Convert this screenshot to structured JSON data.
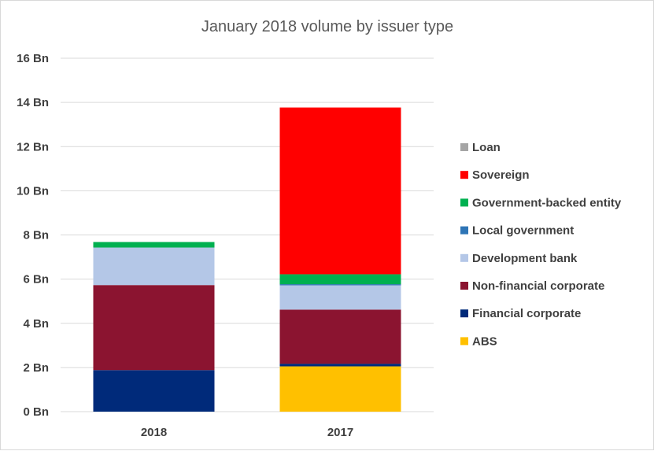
{
  "chart_data": {
    "type": "bar",
    "stacked": true,
    "title": "January 2018 volume by issuer type",
    "categories": [
      "2018",
      "2017"
    ],
    "ylim": [
      0,
      16
    ],
    "y_ticks": [
      "0 Bn",
      "2 Bn",
      "4 Bn",
      "6 Bn",
      "8 Bn",
      "10 Bn",
      "12 Bn",
      "14 Bn",
      "16 Bn"
    ],
    "y_tick_values": [
      0,
      2,
      4,
      6,
      8,
      10,
      12,
      14,
      16
    ],
    "grid": true,
    "legend_position": "right",
    "series": [
      {
        "name": "ABS",
        "color": "#ffc000",
        "values": [
          0,
          2.05
        ]
      },
      {
        "name": "Financial corporate",
        "color": "#002a7a",
        "values": [
          1.88,
          0.12
        ]
      },
      {
        "name": "Non-financial corporate",
        "color": "#8b1430",
        "values": [
          3.85,
          2.45
        ]
      },
      {
        "name": "Development bank",
        "color": "#b4c7e7",
        "values": [
          1.7,
          1.1
        ]
      },
      {
        "name": "Local government",
        "color": "#2e75b6",
        "values": [
          0,
          0.05
        ]
      },
      {
        "name": "Government-backed entity",
        "color": "#00b050",
        "values": [
          0.25,
          0.45
        ]
      },
      {
        "name": "Sovereign",
        "color": "#ff0000",
        "values": [
          0,
          7.55
        ]
      },
      {
        "name": "Loan",
        "color": "#a5a5a5",
        "values": [
          0,
          0
        ]
      }
    ]
  }
}
